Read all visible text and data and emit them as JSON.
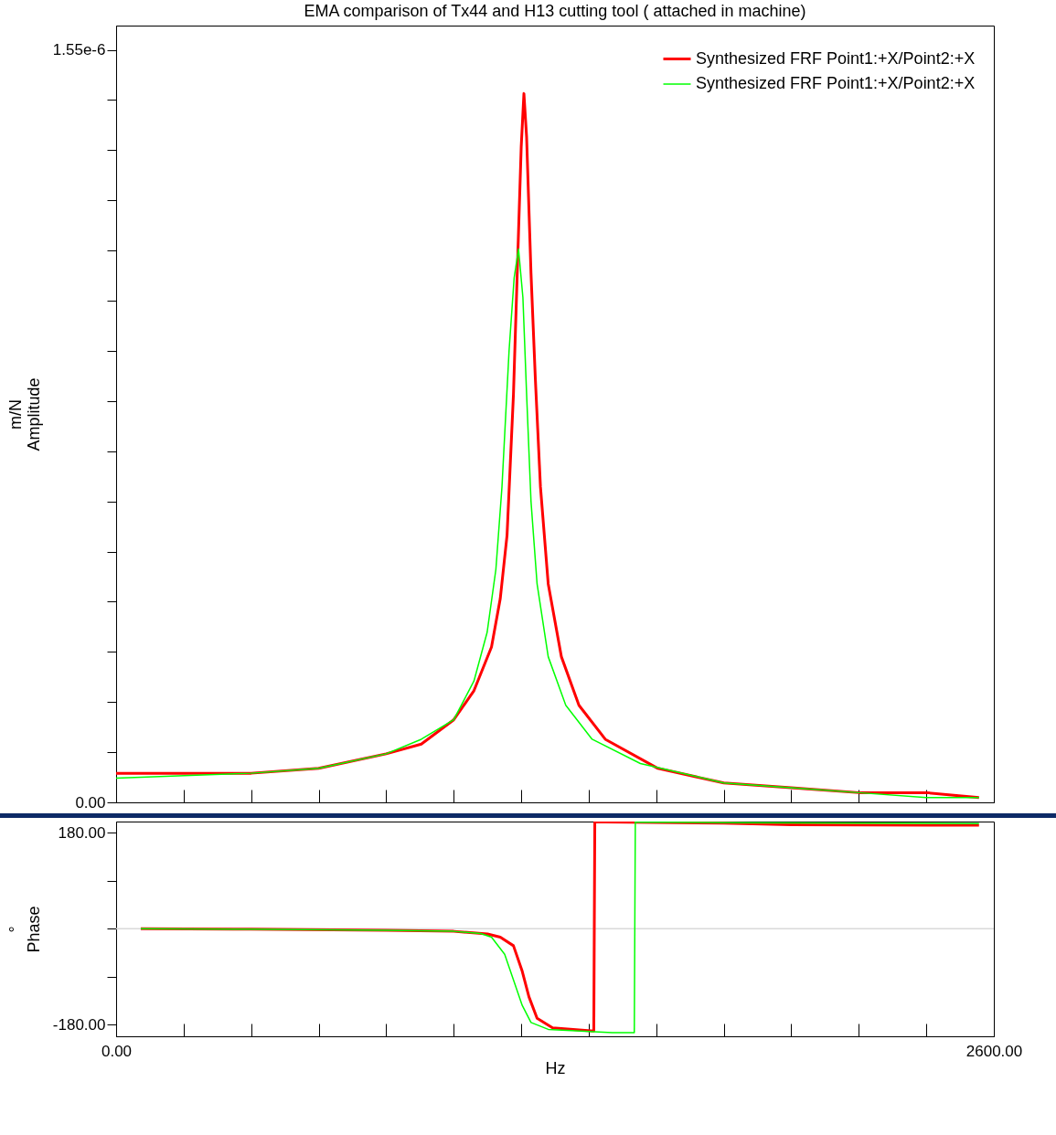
{
  "chart_data": [
    {
      "type": "line",
      "title": "EMA comparison of Tx44 and H13 cutting tool ( attached in machine)",
      "ylabel": "m/N\nAmplitude",
      "xlim": [
        0,
        2600
      ],
      "xticks": [
        {
          "value": 0,
          "label": null
        },
        {
          "value": 200,
          "label": null
        },
        {
          "value": 400,
          "label": null
        },
        {
          "value": 600,
          "label": null
        },
        {
          "value": 800,
          "label": null
        },
        {
          "value": 1000,
          "label": null
        },
        {
          "value": 1200,
          "label": null
        },
        {
          "value": 1400,
          "label": null
        },
        {
          "value": 1600,
          "label": null
        },
        {
          "value": 1800,
          "label": null
        },
        {
          "value": 2000,
          "label": null
        },
        {
          "value": 2200,
          "label": null
        },
        {
          "value": 2400,
          "label": null
        },
        {
          "value": 2600,
          "label": null
        }
      ],
      "ylim": [
        0,
        1.6e-06
      ],
      "yticks": [
        {
          "value": 0,
          "label": "0.00"
        },
        {
          "value": 1.033e-07,
          "label": null
        },
        {
          "value": 2.067e-07,
          "label": null
        },
        {
          "value": 3.1e-07,
          "label": null
        },
        {
          "value": 4.133e-07,
          "label": null
        },
        {
          "value": 5.167e-07,
          "label": null
        },
        {
          "value": 6.2e-07,
          "label": null
        },
        {
          "value": 7.233e-07,
          "label": null
        },
        {
          "value": 8.267e-07,
          "label": null
        },
        {
          "value": 9.3e-07,
          "label": null
        },
        {
          "value": 1.0333e-06,
          "label": null
        },
        {
          "value": 1.1367e-06,
          "label": null
        },
        {
          "value": 1.24e-06,
          "label": null
        },
        {
          "value": 1.3433e-06,
          "label": null
        },
        {
          "value": 1.4467e-06,
          "label": null
        },
        {
          "value": 1.55e-06,
          "label": "1.55e-6"
        }
      ],
      "tick_labels": "y",
      "legend": "top right",
      "grid": false,
      "series": [
        {
          "name": "Synthesized FRF Point1:+X/Point2:+X",
          "color": "#ff0000",
          "x": [
            0,
            400,
            600,
            800,
            904,
            1000,
            1060,
            1112,
            1138,
            1158,
            1177,
            1190,
            1200,
            1208,
            1216,
            1229,
            1242,
            1257,
            1280,
            1319,
            1371,
            1449,
            1605,
            1800,
            2000,
            2200,
            2400,
            2556
          ],
          "values": [
            6e-08,
            6e-08,
            7e-08,
            1e-07,
            1.2e-07,
            1.7e-07,
            2.3e-07,
            3.2e-07,
            4.2e-07,
            5.5e-07,
            8.4e-07,
            1.13e-06,
            1.35e-06,
            1.46e-06,
            1.37e-06,
            1.09e-06,
            8.7e-07,
            6.5e-07,
            4.5e-07,
            3e-07,
            2e-07,
            1.3e-07,
            7e-08,
            4e-08,
            3e-08,
            2e-08,
            2e-08,
            1e-08
          ]
        },
        {
          "name": "Synthesized FRF Point1:+X/Point2:+X",
          "color": "#00ff00",
          "x": [
            0,
            400,
            600,
            800,
            904,
            1000,
            1060,
            1099,
            1125,
            1143,
            1164,
            1179,
            1192,
            1205,
            1216,
            1229,
            1247,
            1280,
            1332,
            1410,
            1553,
            1800,
            2000,
            2200,
            2400,
            2556
          ],
          "values": [
            5e-08,
            6e-08,
            7e-08,
            1e-07,
            1.3e-07,
            1.7e-07,
            2.5e-07,
            3.5e-07,
            4.8e-07,
            6.5e-07,
            9.3e-07,
            1.08e-06,
            1.14e-06,
            1.04e-06,
            8.4e-07,
            6.2e-07,
            4.5e-07,
            3e-07,
            2e-07,
            1.3e-07,
            8e-08,
            4e-08,
            3e-08,
            2e-08,
            1e-08,
            1e-08
          ]
        }
      ]
    },
    {
      "type": "line",
      "xlabel": "Hz",
      "ylabel": "°\nPhase",
      "xlim": [
        0,
        2600
      ],
      "xticks": [
        {
          "value": 0,
          "label": "0.00"
        },
        {
          "value": 200,
          "label": null
        },
        {
          "value": 400,
          "label": null
        },
        {
          "value": 600,
          "label": null
        },
        {
          "value": 800,
          "label": null
        },
        {
          "value": 1000,
          "label": null
        },
        {
          "value": 1200,
          "label": null
        },
        {
          "value": 1400,
          "label": null
        },
        {
          "value": 1600,
          "label": null
        },
        {
          "value": 1800,
          "label": null
        },
        {
          "value": 2000,
          "label": null
        },
        {
          "value": 2200,
          "label": null
        },
        {
          "value": 2400,
          "label": null
        },
        {
          "value": 2600,
          "label": "2600.00"
        }
      ],
      "ylim": [
        -202,
        201
      ],
      "yticks": [
        {
          "value": -180,
          "label": "-180.00"
        },
        {
          "value": -90,
          "label": null
        },
        {
          "value": 0,
          "label": null
        },
        {
          "value": 90,
          "label": null
        },
        {
          "value": 180,
          "label": "180.00"
        }
      ],
      "ref_lines": [
        {
          "axis": "y",
          "value": 0,
          "color": "#d9d9d9"
        }
      ],
      "grid": false,
      "series": [
        {
          "color": "#ff0000",
          "x": [
            73,
            400,
            800,
            1000,
            1100,
            1138,
            1177,
            1203,
            1223,
            1247,
            1293,
            1415,
            1418,
            1449,
            1800,
            2000,
            2556
          ],
          "values": [
            0,
            -1,
            -3,
            -5,
            -10,
            -16,
            -32,
            -80,
            -128,
            -168,
            -186,
            -192,
            200,
            200,
            198,
            195,
            194
          ]
        },
        {
          "color": "#00ff00",
          "x": [
            73,
            400,
            800,
            1000,
            1080,
            1112,
            1151,
            1177,
            1203,
            1229,
            1280,
            1470,
            1535,
            1538,
            1800,
            2556
          ],
          "values": [
            0,
            -1,
            -3,
            -5,
            -9,
            -16,
            -48,
            -96,
            -144,
            -176,
            -189,
            -195,
            -195,
            200,
            199,
            197
          ]
        }
      ]
    }
  ]
}
